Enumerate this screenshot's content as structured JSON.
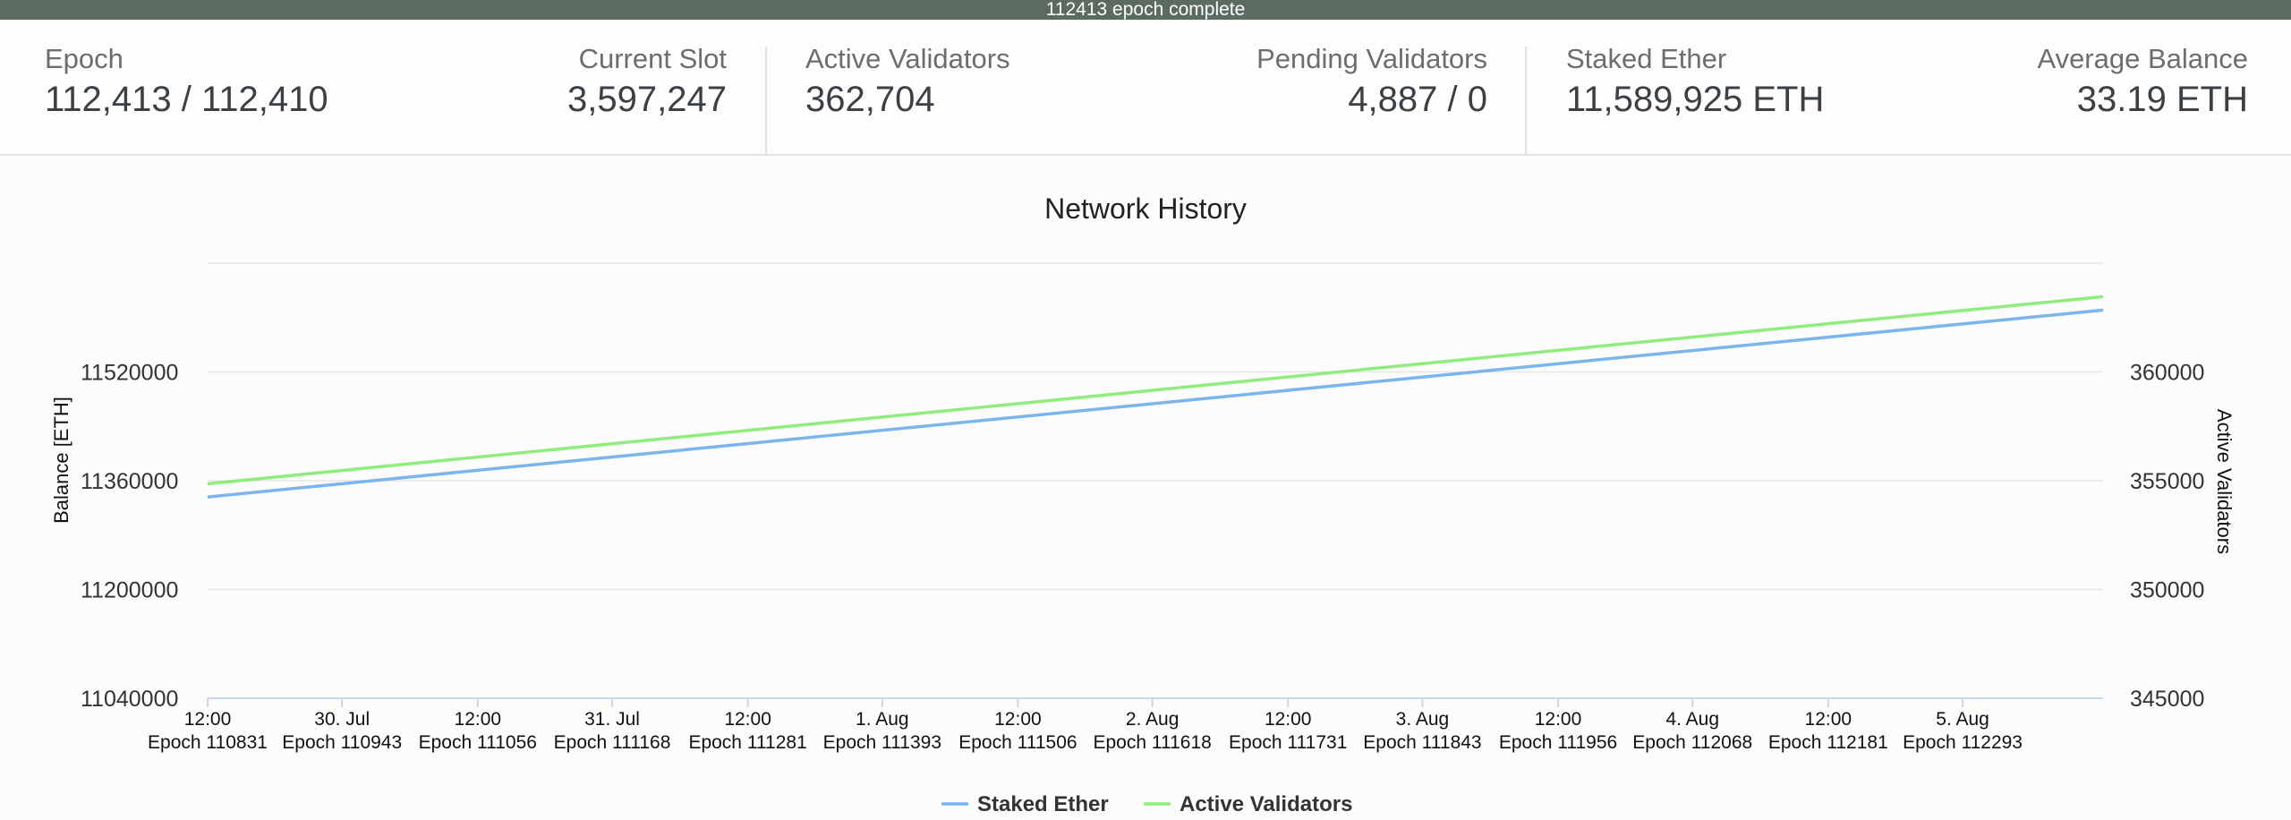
{
  "banner": {
    "text": "112413 epoch complete"
  },
  "stats": {
    "epoch": {
      "label": "Epoch",
      "value": "112,413 / 112,410"
    },
    "current_slot": {
      "label": "Current Slot",
      "value": "3,597,247"
    },
    "active_validators": {
      "label": "Active Validators",
      "value": "362,704"
    },
    "pending_validators": {
      "label": "Pending Validators",
      "value": "4,887 / 0"
    },
    "staked_ether": {
      "label": "Staked Ether",
      "value": "11,589,925 ETH"
    },
    "average_balance": {
      "label": "Average Balance",
      "value": "33.19 ETH"
    }
  },
  "colors": {
    "banner": "#5b6b62",
    "staked_ether": "#7cb5ec",
    "active_validators": "#90ed7d",
    "grid": "#e6e6e6"
  },
  "chart_data": {
    "type": "line",
    "title": "Network History",
    "ylabel": "Balance [ETH]",
    "y2label": "Active Validators",
    "ylim": [
      11040000,
      11680000
    ],
    "y_ticks": [
      "11040000",
      "11200000",
      "11360000",
      "11520000"
    ],
    "y2lim": [
      345000,
      365000
    ],
    "y2_ticks": [
      "345000",
      "350000",
      "355000",
      "360000"
    ],
    "xlim": [
      110831,
      112410
    ],
    "x_ticks": [
      {
        "date": "12:00",
        "epoch": "Epoch 110831",
        "x": 110831
      },
      {
        "date": "30. Jul",
        "epoch": "Epoch 110943",
        "x": 110943
      },
      {
        "date": "12:00",
        "epoch": "Epoch 111056",
        "x": 111056
      },
      {
        "date": "31. Jul",
        "epoch": "Epoch 111168",
        "x": 111168
      },
      {
        "date": "12:00",
        "epoch": "Epoch 111281",
        "x": 111281
      },
      {
        "date": "1. Aug",
        "epoch": "Epoch 111393",
        "x": 111393
      },
      {
        "date": "12:00",
        "epoch": "Epoch 111506",
        "x": 111506
      },
      {
        "date": "2. Aug",
        "epoch": "Epoch 111618",
        "x": 111618
      },
      {
        "date": "12:00",
        "epoch": "Epoch 111731",
        "x": 111731
      },
      {
        "date": "3. Aug",
        "epoch": "Epoch 111843",
        "x": 111843
      },
      {
        "date": "12:00",
        "epoch": "Epoch 111956",
        "x": 111956
      },
      {
        "date": "4. Aug",
        "epoch": "Epoch 112068",
        "x": 112068
      },
      {
        "date": "12:00",
        "epoch": "Epoch 112181",
        "x": 112181
      },
      {
        "date": "5. Aug",
        "epoch": "Epoch 112293",
        "x": 112293
      }
    ],
    "series": [
      {
        "name": "Staked Ether",
        "axis": "left",
        "x": [
          110831,
          111300,
          111800,
          112410
        ],
        "values": [
          11336000,
          11418000,
          11505000,
          11611000
        ]
      },
      {
        "name": "Active Validators",
        "axis": "right",
        "x": [
          110831,
          111300,
          111800,
          112410
        ],
        "values": [
          354860,
          357420,
          360150,
          363460
        ]
      }
    ],
    "legend": "bottom-center",
    "grid": true
  }
}
